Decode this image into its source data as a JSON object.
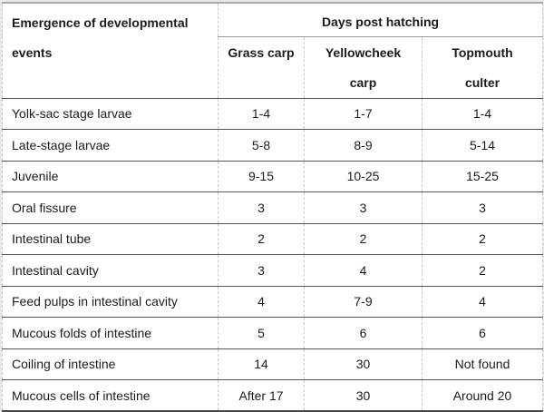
{
  "table": {
    "row_header": {
      "lines": [
        "Emergence of developmental",
        "events"
      ]
    },
    "group_header": "Days post hatching",
    "columns": [
      {
        "lines": [
          "Grass carp"
        ]
      },
      {
        "lines": [
          "Yellowcheek",
          "carp"
        ]
      },
      {
        "lines": [
          "Topmouth",
          "culter"
        ]
      }
    ],
    "rows": [
      {
        "event": "Yolk-sac stage larvae",
        "values": [
          "1-4",
          "1-7",
          "1-4"
        ]
      },
      {
        "event": "Late-stage larvae",
        "values": [
          "5-8",
          "8-9",
          "5-14"
        ]
      },
      {
        "event": "Juvenile",
        "values": [
          "9-15",
          "10-25",
          "15-25"
        ]
      },
      {
        "event": "Oral fissure",
        "values": [
          "3",
          "3",
          "3"
        ]
      },
      {
        "event": "Intestinal tube",
        "values": [
          "2",
          "2",
          "2"
        ]
      },
      {
        "event": "Intestinal cavity",
        "values": [
          "3",
          "4",
          "2"
        ]
      },
      {
        "event": "Feed pulps in intestinal cavity",
        "values": [
          "4",
          "7-9",
          "4"
        ]
      },
      {
        "event": "Mucous folds of intestine",
        "values": [
          "5",
          "6",
          "6"
        ]
      },
      {
        "event": "Coiling of intestine",
        "values": [
          "14",
          "30",
          "Not found"
        ]
      },
      {
        "event": "Mucous cells of intestine",
        "values": [
          "After 17",
          "30",
          "Around 20"
        ]
      }
    ],
    "colors": {
      "text": "#1b1b1b",
      "row_line": "#555555",
      "grid_dashed": "#c9c9c9",
      "outer_top": "#a9a9a9",
      "outer_bottom": "#474747",
      "cell_background": "#ffffff",
      "page_background": "#e8e8e8"
    }
  }
}
